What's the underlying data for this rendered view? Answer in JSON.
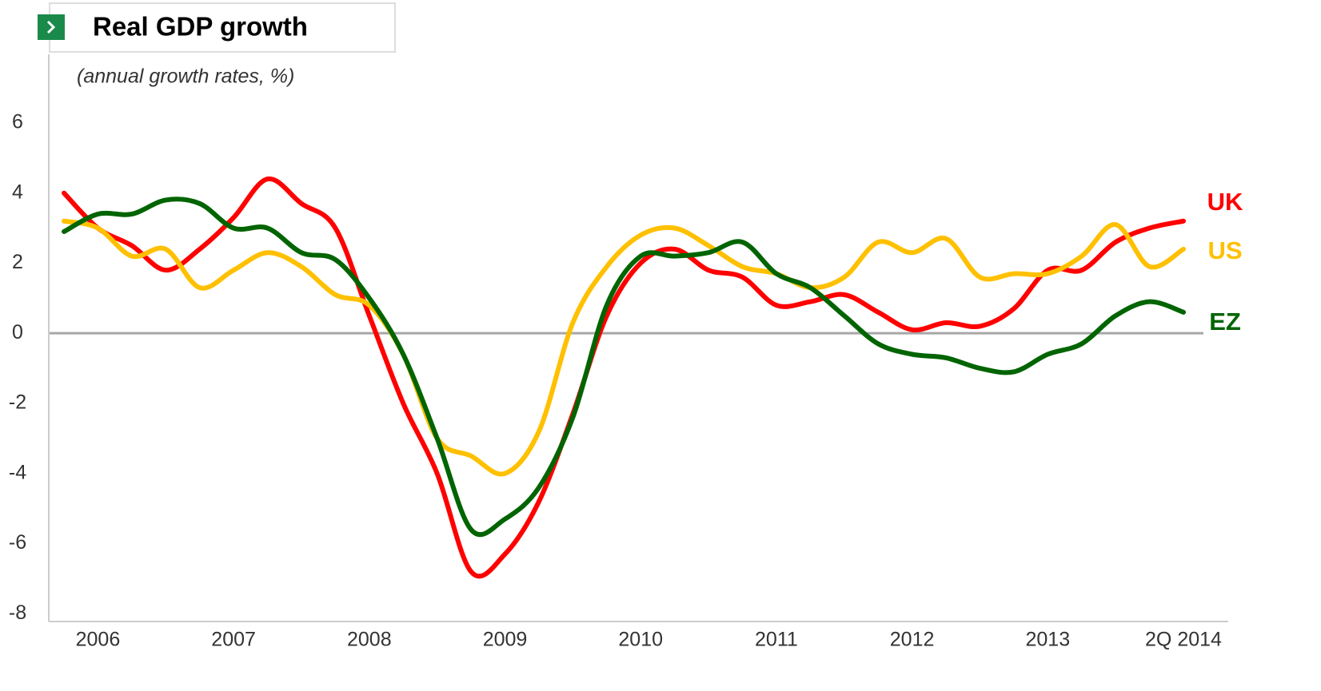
{
  "chart_data": {
    "type": "line",
    "title": "Real GDP growth",
    "subtitle": "(annual growth rates, %)",
    "categories": [
      null,
      "2006",
      null,
      null,
      null,
      "2007",
      null,
      null,
      null,
      "2008",
      null,
      null,
      null,
      "2009",
      null,
      null,
      null,
      "2010",
      null,
      null,
      null,
      "2011",
      null,
      null,
      null,
      "2012",
      null,
      null,
      null,
      "2013",
      null,
      null,
      null,
      "2Q 2014"
    ],
    "series": [
      {
        "name": "UK",
        "color": "#ff0000",
        "values": [
          4.0,
          3.0,
          2.5,
          1.8,
          2.4,
          3.3,
          4.4,
          3.7,
          3.0,
          0.5,
          -2.0,
          -4.0,
          -6.8,
          -6.3,
          -4.8,
          -2.3,
          0.5,
          2.0,
          2.4,
          1.8,
          1.6,
          0.8,
          0.9,
          1.1,
          0.6,
          0.1,
          0.3,
          0.2,
          0.7,
          1.8,
          1.8,
          2.6,
          3.0,
          3.2
        ]
      },
      {
        "name": "US",
        "color": "#ffc000",
        "values": [
          3.2,
          3.0,
          2.2,
          2.4,
          1.3,
          1.8,
          2.3,
          1.9,
          1.1,
          0.8,
          -0.6,
          -3.0,
          -3.5,
          -4.0,
          -2.8,
          0.3,
          1.9,
          2.8,
          3.0,
          2.5,
          1.9,
          1.7,
          1.3,
          1.6,
          2.6,
          2.3,
          2.7,
          1.6,
          1.7,
          1.7,
          2.2,
          3.1,
          1.9,
          2.4
        ]
      },
      {
        "name": "EZ",
        "color": "#006400",
        "values": [
          2.9,
          3.4,
          3.4,
          3.8,
          3.7,
          3.0,
          3.0,
          2.3,
          2.1,
          1.0,
          -0.6,
          -3.0,
          -5.6,
          -5.3,
          -4.4,
          -2.4,
          0.8,
          2.2,
          2.2,
          2.3,
          2.6,
          1.7,
          1.3,
          0.5,
          -0.3,
          -0.6,
          -0.7,
          -1.0,
          -1.1,
          -0.6,
          -0.3,
          0.5,
          0.9,
          0.6
        ]
      }
    ],
    "ylim": [
      -8.2,
      7
    ],
    "yticks": [
      -8,
      -6,
      -4,
      -2,
      0,
      2,
      4,
      6
    ]
  }
}
